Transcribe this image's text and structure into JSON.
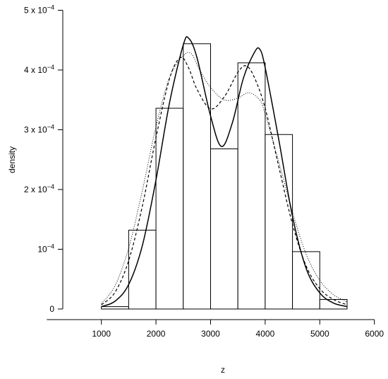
{
  "chart_data": {
    "type": "histogram",
    "xlabel": "z",
    "ylabel": "density",
    "x_axis": {
      "range": [
        0,
        6000
      ],
      "ticks": [
        1000,
        2000,
        3000,
        4000,
        5000,
        6000
      ],
      "tick_labels": [
        "1000",
        "2000",
        "3000",
        "4000",
        "5000",
        "6000"
      ]
    },
    "y_axis": {
      "range": [
        0,
        0.0005
      ],
      "ticks": [
        0,
        0.0001,
        0.0002,
        0.0003,
        0.0004,
        0.0005
      ],
      "tick_labels": [
        {
          "base": "0",
          "exp": ""
        },
        {
          "base": "10",
          "exp": "−4"
        },
        {
          "base": "2 x 10",
          "exp": "−4"
        },
        {
          "base": "3 x 10",
          "exp": "−4"
        },
        {
          "base": "4 x 10",
          "exp": "−4"
        },
        {
          "base": "5 x 10",
          "exp": "−4"
        }
      ]
    },
    "bins": [
      {
        "start": 1000,
        "end": 1500,
        "density": 4e-06
      },
      {
        "start": 1500,
        "end": 2000,
        "density": 0.000132
      },
      {
        "start": 2000,
        "end": 2500,
        "density": 0.000336
      },
      {
        "start": 2500,
        "end": 3000,
        "density": 0.000444
      },
      {
        "start": 3000,
        "end": 3500,
        "density": 0.000268
      },
      {
        "start": 3500,
        "end": 4000,
        "density": 0.000412
      },
      {
        "start": 4000,
        "end": 4500,
        "density": 0.000292
      },
      {
        "start": 4500,
        "end": 5000,
        "density": 9.6e-05
      },
      {
        "start": 5000,
        "end": 5500,
        "density": 1.6e-05
      }
    ],
    "series": [
      {
        "style": "solid",
        "points": [
          [
            1000,
            4e-06
          ],
          [
            1250,
            1.3e-05
          ],
          [
            1500,
            4.1e-05
          ],
          [
            1750,
            0.000106
          ],
          [
            2000,
            0.000216
          ],
          [
            2250,
            0.000346
          ],
          [
            2500,
            0.000442
          ],
          [
            2600,
            0.000453
          ],
          [
            2750,
            0.000421
          ],
          [
            3000,
            0.000323
          ],
          [
            3200,
            0.000272
          ],
          [
            3400,
            0.000312
          ],
          [
            3600,
            0.000386
          ],
          [
            3800,
            0.000429
          ],
          [
            3900,
            0.000435
          ],
          [
            4000,
            0.000404
          ],
          [
            4250,
            0.000283
          ],
          [
            4500,
            0.000155
          ],
          [
            4750,
            6.8e-05
          ],
          [
            5000,
            2.7e-05
          ],
          [
            5250,
            1e-05
          ],
          [
            5500,
            4e-06
          ]
        ]
      },
      {
        "style": "dashed",
        "points": [
          [
            1000,
            7e-06
          ],
          [
            1250,
            2.8e-05
          ],
          [
            1500,
            8.1e-05
          ],
          [
            1750,
            0.000172
          ],
          [
            2000,
            0.000287
          ],
          [
            2250,
            0.000386
          ],
          [
            2450,
            0.000421
          ],
          [
            2600,
            0.000403
          ],
          [
            2750,
            0.000368
          ],
          [
            3000,
            0.000335
          ],
          [
            3250,
            0.000355
          ],
          [
            3500,
            0.000396
          ],
          [
            3650,
            0.000407
          ],
          [
            3800,
            0.000388
          ],
          [
            4000,
            0.000336
          ],
          [
            4250,
            0.000238
          ],
          [
            4500,
            0.000142
          ],
          [
            4750,
            7.2e-05
          ],
          [
            5000,
            3.4e-05
          ],
          [
            5250,
            1.6e-05
          ],
          [
            5500,
            7e-06
          ]
        ]
      },
      {
        "style": "dotted",
        "points": [
          [
            1000,
            9e-06
          ],
          [
            1250,
            3.9e-05
          ],
          [
            1500,
            0.000102
          ],
          [
            1750,
            0.000198
          ],
          [
            2000,
            0.000305
          ],
          [
            2250,
            0.000388
          ],
          [
            2500,
            0.000424
          ],
          [
            2650,
            0.000427
          ],
          [
            2800,
            0.0004
          ],
          [
            3000,
            0.000371
          ],
          [
            3250,
            0.00035
          ],
          [
            3500,
            0.000353
          ],
          [
            3700,
            0.000362
          ],
          [
            3900,
            0.00035
          ],
          [
            4000,
            0.000326
          ],
          [
            4250,
            0.000246
          ],
          [
            4500,
            0.000162
          ],
          [
            4750,
            9.2e-05
          ],
          [
            5000,
            4.8e-05
          ],
          [
            5250,
            2.4e-05
          ],
          [
            5500,
            1.2e-05
          ]
        ]
      }
    ]
  }
}
